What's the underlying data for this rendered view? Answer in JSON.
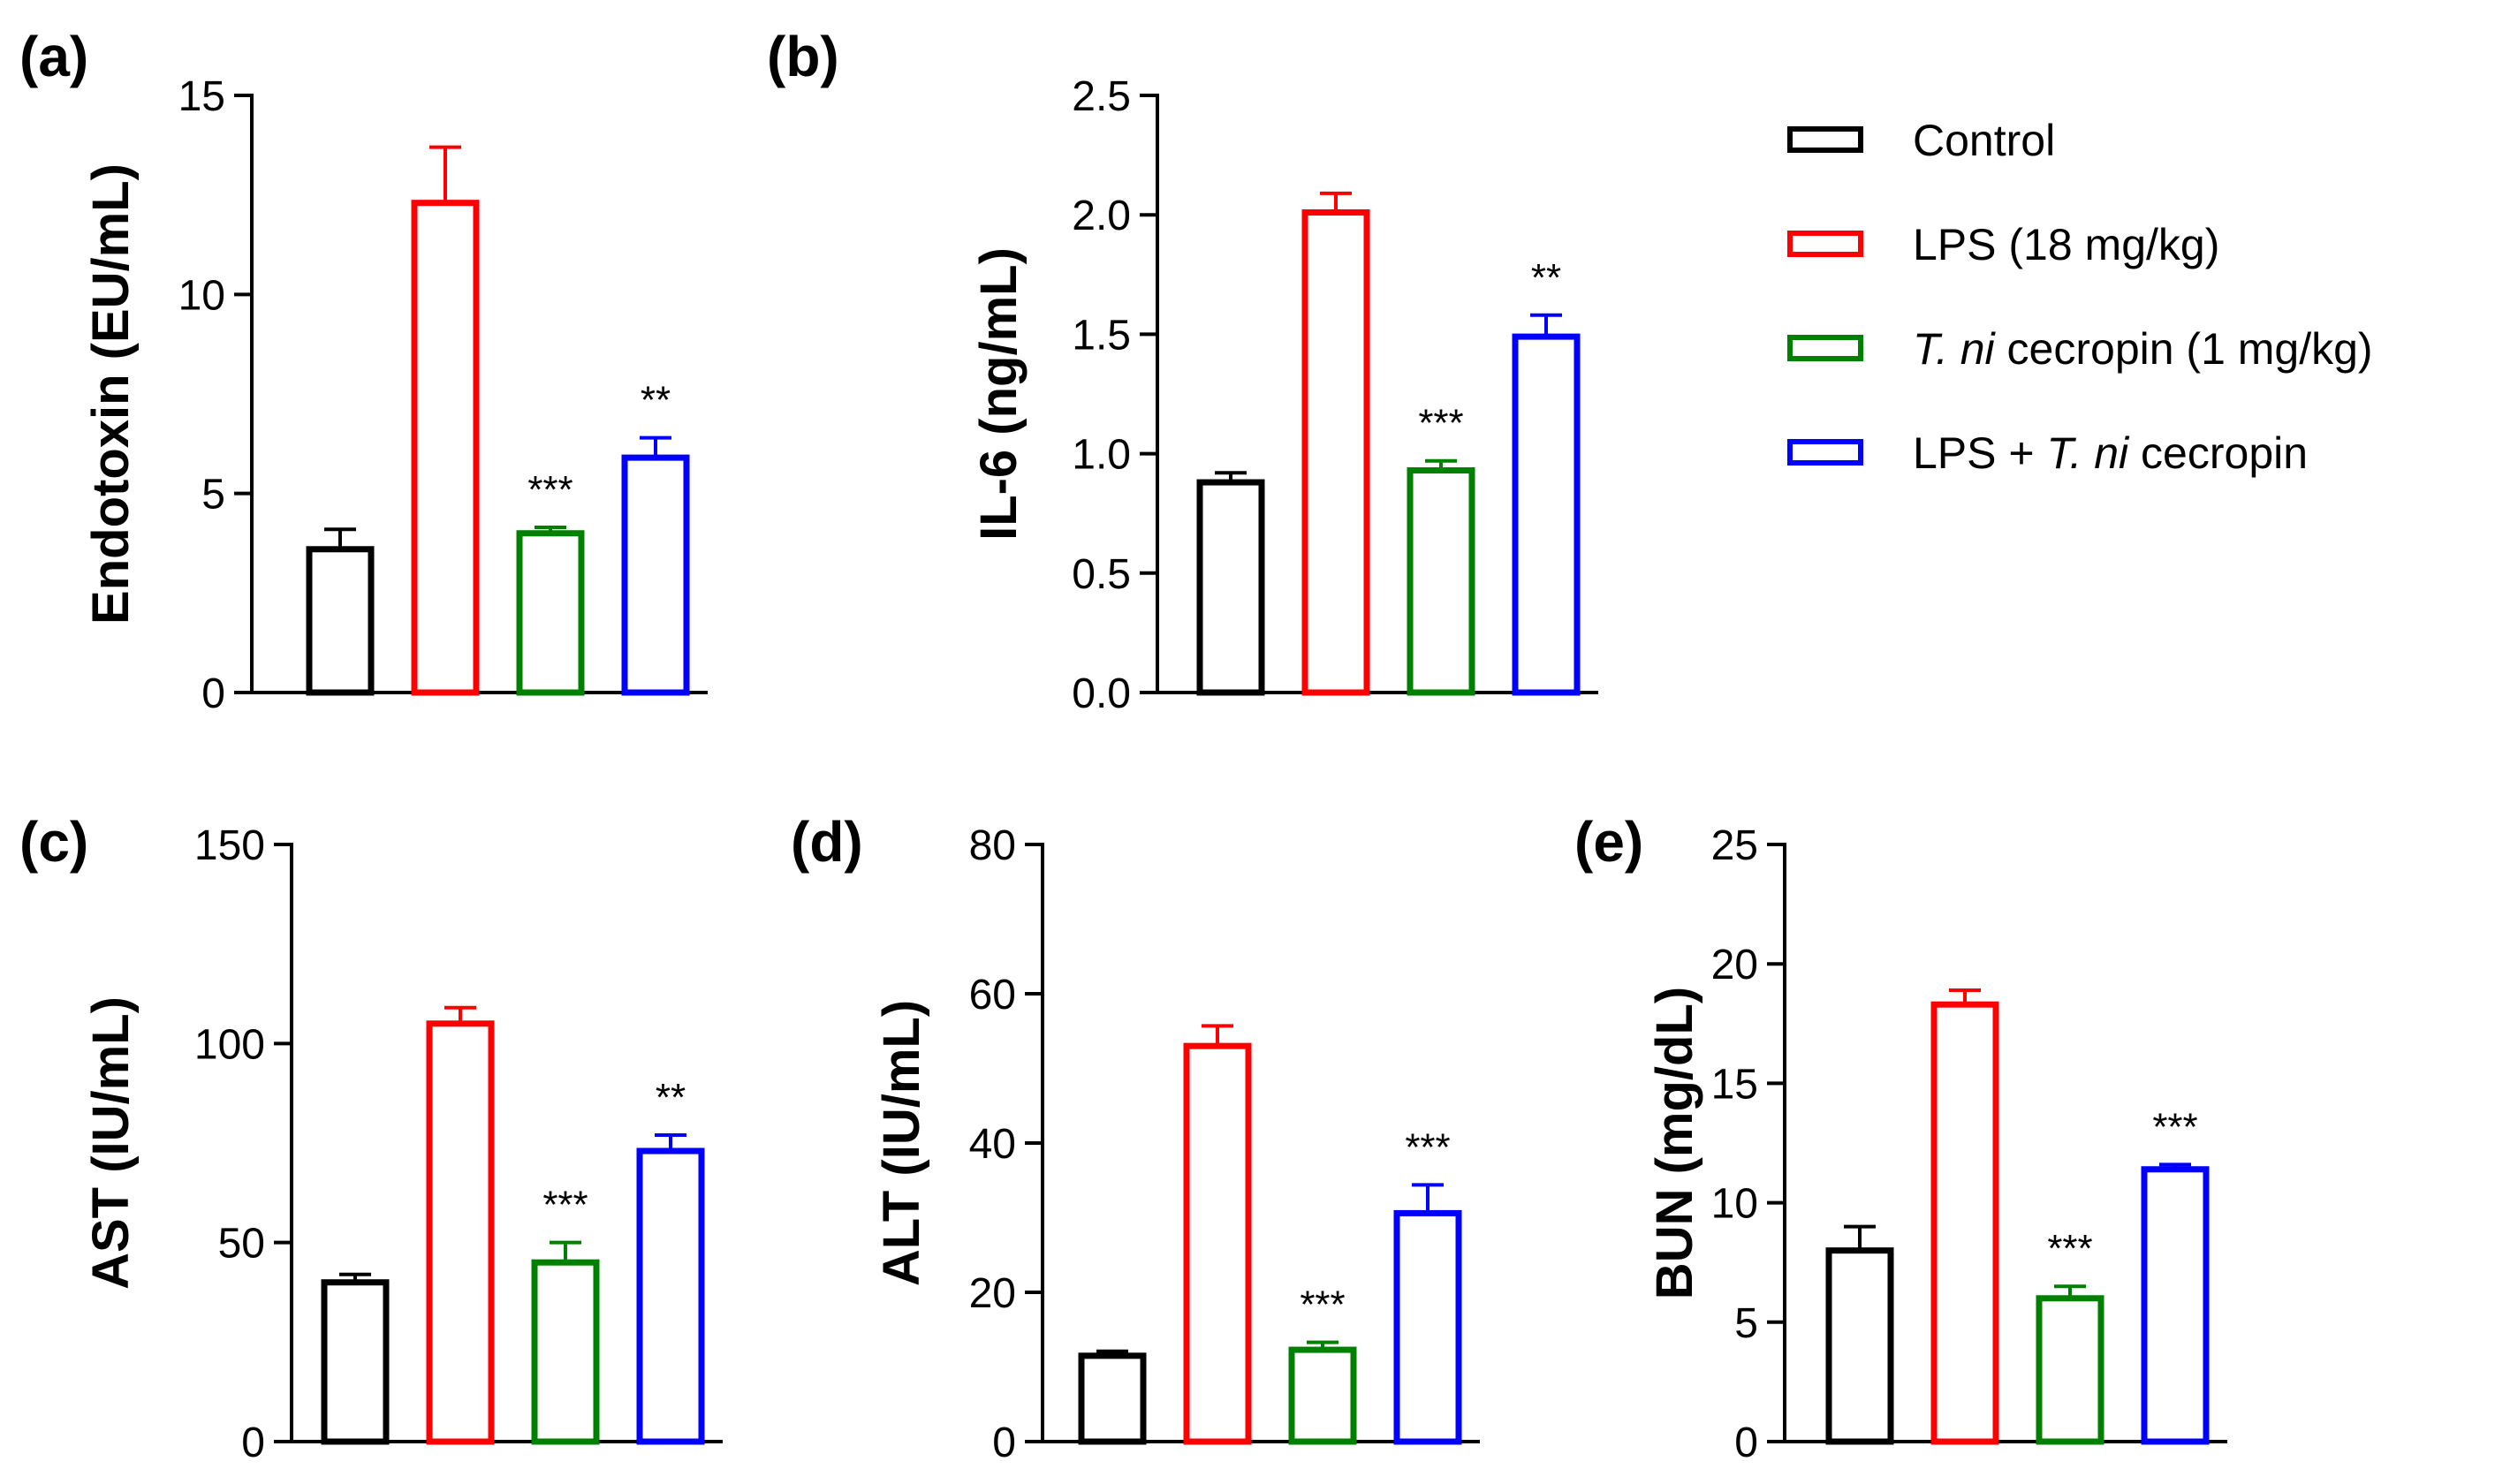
{
  "legend": [
    {
      "name": "Control",
      "color": "#000000"
    },
    {
      "name": "LPS (18 mg/kg)",
      "color": "#ff0000"
    },
    {
      "name": "T. ni cecropin (1 mg/kg)",
      "color": "#008000"
    },
    {
      "name": "LPS + T. ni cecropin",
      "color": "#0000ff"
    }
  ],
  "chart_data": [
    {
      "panel": "(a)",
      "type": "bar",
      "ylabel": "Endotoxin (EU/mL)",
      "ylim": [
        0,
        15
      ],
      "yticks": [
        0,
        5,
        10,
        15
      ],
      "groups": [
        "Control",
        "LPS (18 mg/kg)",
        "T. ni cecropin (1 mg/kg)",
        "LPS + T. ni cecropin"
      ],
      "values": [
        3.6,
        12.3,
        4.0,
        5.9
      ],
      "errors": [
        0.5,
        1.4,
        0.15,
        0.5
      ],
      "significance": [
        "",
        "",
        "***",
        "**"
      ]
    },
    {
      "panel": "(b)",
      "type": "bar",
      "ylabel": "IL-6 (ng/mL)",
      "ylim": [
        0,
        2.5
      ],
      "yticks": [
        0,
        0.5,
        1.0,
        1.5,
        2.0,
        2.5
      ],
      "ytick_labels": [
        "0.0",
        "0.5",
        "1.0",
        "1.5",
        "2.0",
        "2.5"
      ],
      "groups": [
        "Control",
        "LPS (18 mg/kg)",
        "T. ni cecropin (1 mg/kg)",
        "LPS + T. ni cecropin"
      ],
      "values": [
        0.88,
        2.01,
        0.93,
        1.49
      ],
      "errors": [
        0.04,
        0.08,
        0.04,
        0.09
      ],
      "significance": [
        "",
        "",
        "***",
        "**"
      ]
    },
    {
      "panel": "(c)",
      "type": "bar",
      "ylabel": "AST (IU/mL)",
      "ylim": [
        0,
        150
      ],
      "yticks": [
        0,
        50,
        100,
        150
      ],
      "groups": [
        "Control",
        "LPS (18 mg/kg)",
        "T. ni cecropin (1 mg/kg)",
        "LPS + T. ni cecropin"
      ],
      "values": [
        40,
        105,
        45,
        73
      ],
      "errors": [
        2,
        4,
        5,
        4
      ],
      "significance": [
        "",
        "",
        "***",
        "**"
      ]
    },
    {
      "panel": "(d)",
      "type": "bar",
      "ylabel": "ALT (IU/mL)",
      "ylim": [
        0,
        80
      ],
      "yticks": [
        0,
        20,
        40,
        60,
        80
      ],
      "groups": [
        "Control",
        "LPS (18 mg/kg)",
        "T. ni cecropin (1 mg/kg)",
        "LPS + T. ni cecropin"
      ],
      "values": [
        11.5,
        53,
        12.3,
        30.6
      ],
      "errors": [
        0.6,
        2.7,
        1.0,
        3.8
      ],
      "significance": [
        "",
        "",
        "***",
        "***"
      ]
    },
    {
      "panel": "(e)",
      "type": "bar",
      "ylabel": "BUN (mg/dL)",
      "ylim": [
        0,
        25
      ],
      "yticks": [
        0,
        5,
        10,
        15,
        20,
        25
      ],
      "groups": [
        "Control",
        "LPS (18 mg/kg)",
        "T. ni cecropin (1 mg/kg)",
        "LPS + T. ni cecropin"
      ],
      "values": [
        8.0,
        18.3,
        6.0,
        11.4
      ],
      "errors": [
        1.0,
        0.6,
        0.5,
        0.2
      ],
      "significance": [
        "",
        "",
        "***",
        "***"
      ]
    }
  ]
}
